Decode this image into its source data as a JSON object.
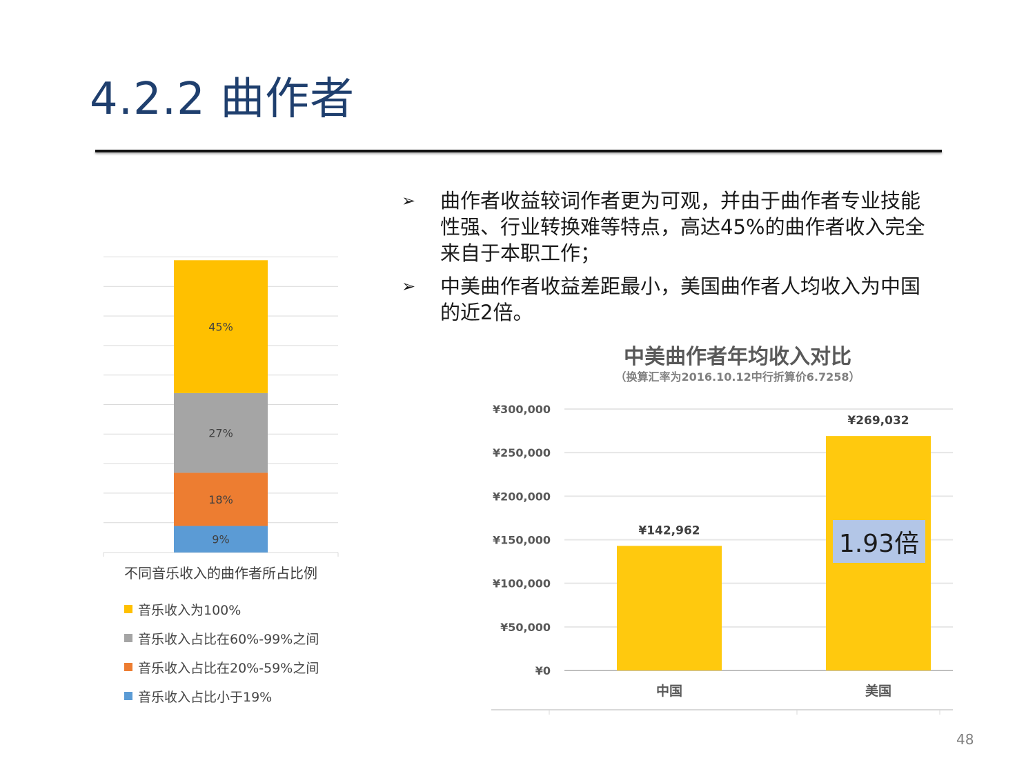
{
  "slide": {
    "title": "4.2.2 曲作者",
    "page_number": "48"
  },
  "bullets": [
    {
      "icon": "arrow-right-icon",
      "text": "曲作者收益较词作者更为可观，并由于曲作者专业技能性强、行业转换难等特点，高达45%的曲作者收入完全来自于本职工作；"
    },
    {
      "icon": "arrow-right-icon",
      "text": "中美曲作者收益差距最小，美国曲作者人均收入为中国的近2倍。"
    }
  ],
  "chart_data": [
    {
      "type": "bar",
      "stacked": true,
      "title": "",
      "categories": [
        "不同音乐收入的曲作者所占比例"
      ],
      "series": [
        {
          "name": "音乐收入占比小于19%",
          "values": [
            9
          ],
          "label": "9%",
          "color": "#5b9bd5"
        },
        {
          "name": "音乐收入占比在20%-59%之间",
          "values": [
            18
          ],
          "label": "18%",
          "color": "#ed7d31"
        },
        {
          "name": "音乐收入占比在60%-99%之间",
          "values": [
            27
          ],
          "label": "27%",
          "color": "#a5a5a5"
        },
        {
          "name": "音乐收入为100%",
          "values": [
            45
          ],
          "label": "45%",
          "color": "#ffc000"
        }
      ],
      "legend_order": [
        "音乐收入为100%",
        "音乐收入占比在60%-99%之间",
        "音乐收入占比在20%-59%之间",
        "音乐收入占比小于19%"
      ],
      "ylim": [
        0,
        100
      ],
      "grid": true,
      "legend": "bottom"
    },
    {
      "type": "bar",
      "title": "中美曲作者年均收入对比",
      "subtitle": "（换算汇率为2016.10.12中行折算价6.7258）",
      "categories": [
        "中国",
        "美国"
      ],
      "values": [
        142962,
        269032
      ],
      "value_labels": [
        "¥142,962",
        "¥269,032"
      ],
      "yticks": [
        0,
        50000,
        100000,
        150000,
        200000,
        250000,
        300000
      ],
      "ytick_labels": [
        "¥0",
        "¥50,000",
        "¥100,000",
        "¥150,000",
        "¥200,000",
        "¥250,000",
        "¥300,000"
      ],
      "ylim": [
        0,
        300000
      ],
      "grid": true,
      "bar_color": "#ffc90e",
      "annotation": "1.93倍"
    }
  ]
}
